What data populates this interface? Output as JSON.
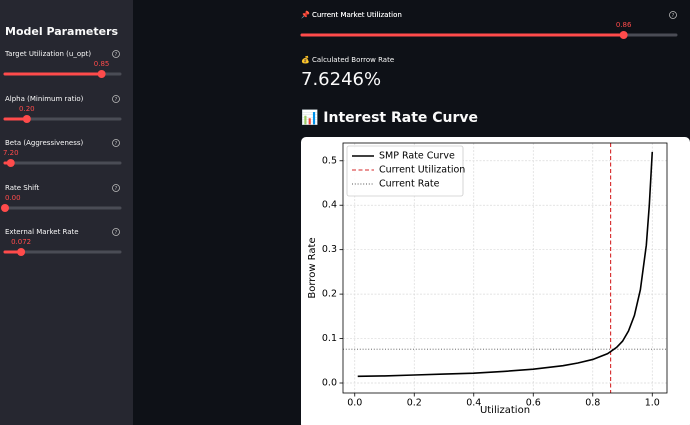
{
  "sidebar": {
    "title": "Model Parameters",
    "sliders": [
      {
        "label": "Target Utilization (u_opt)",
        "value": "0.85"
      },
      {
        "label": "Alpha (Minimum ratio)",
        "value": "0.20"
      },
      {
        "label": "Beta (Aggressiveness)",
        "value": "7.20"
      },
      {
        "label": "Rate Shift",
        "value": "0.00"
      },
      {
        "label": "External Market Rate",
        "value": "0.072"
      }
    ]
  },
  "main": {
    "utilization_slider": {
      "label": "📌 Current Market Utilization",
      "value": "0.86"
    },
    "borrow_rate": {
      "label": "💰 Calculated Borrow Rate",
      "value": "7.6246%"
    },
    "chart_header": "📊 Interest Rate Curve"
  },
  "chart_data": {
    "type": "line",
    "x_label": "Utilization",
    "y_label": "Borrow Rate",
    "x": [
      0.01,
      0.1,
      0.2,
      0.3,
      0.4,
      0.5,
      0.6,
      0.7,
      0.75,
      0.8,
      0.85,
      0.88,
      0.9,
      0.92,
      0.94,
      0.96,
      0.98,
      0.99,
      1.0
    ],
    "series": [
      {
        "name": "SMP Rate Curve",
        "color": "#000000",
        "values": [
          0.015,
          0.016,
          0.018,
          0.02,
          0.022,
          0.026,
          0.031,
          0.039,
          0.045,
          0.053,
          0.066,
          0.08,
          0.094,
          0.117,
          0.152,
          0.21,
          0.31,
          0.4,
          0.52
        ]
      }
    ],
    "vlines": [
      {
        "name": "Current Utilization",
        "x": 0.86,
        "color": "#d62728"
      }
    ],
    "hlines": [
      {
        "name": "Current Rate",
        "y": 0.076,
        "color": "#555555"
      }
    ],
    "xlim": [
      -0.0395,
      1.0495
    ],
    "ylim": [
      -0.0225,
      0.54
    ],
    "xticks": [
      {
        "value": 0,
        "label": "0.0"
      },
      0.2,
      0.4,
      0.6,
      0.8,
      {
        "value": 1,
        "label": "1.0"
      }
    ],
    "yticks": [
      {
        "value": 0,
        "label": "0.0"
      },
      0.1,
      0.2,
      0.3,
      0.4,
      0.5
    ],
    "grid": true,
    "legend": "upper left"
  }
}
